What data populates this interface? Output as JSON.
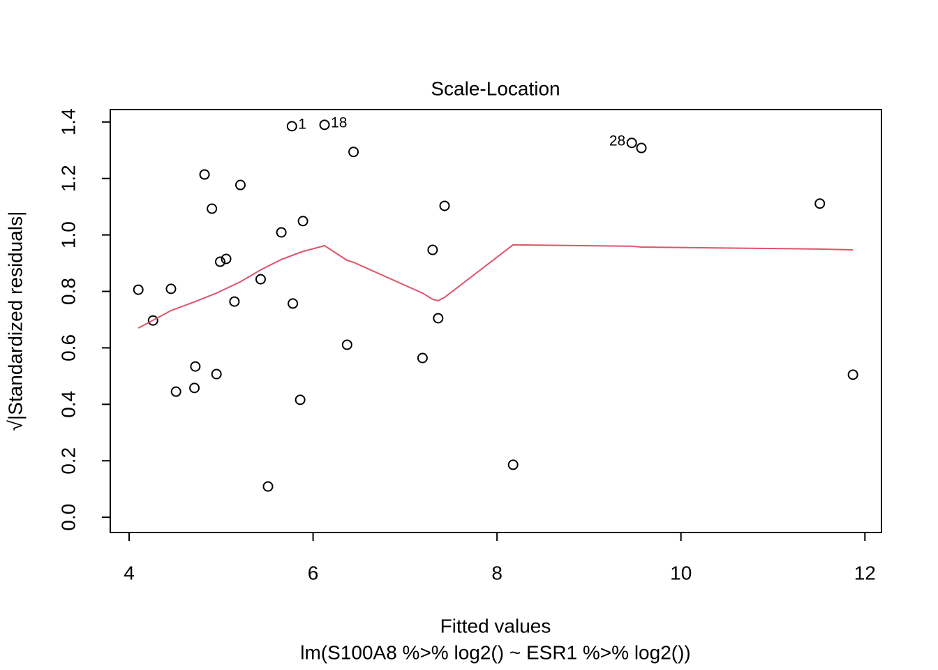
{
  "chart_data": {
    "type": "scatter",
    "title": "Scale-Location",
    "xlabel": "Fitted values",
    "subtitle": "lm(S100A8 %>% log2() ~ ESR1 %>% log2())",
    "ylabel": "√|Standardized residuals|",
    "xlim": [
      3.795,
      12.18
    ],
    "ylim": [
      -0.054,
      1.444
    ],
    "xticks": [
      4,
      6,
      8,
      10,
      12
    ],
    "yticks": [
      {
        "value": 0,
        "label": "0.0"
      },
      {
        "value": 0.2,
        "label": "0.2"
      },
      {
        "value": 0.4,
        "label": "0.4"
      },
      {
        "value": 0.6,
        "label": "0.6"
      },
      {
        "value": 0.8,
        "label": "0.8"
      },
      {
        "value": 1,
        "label": "1.0"
      },
      {
        "value": 1.2,
        "label": "1.2"
      },
      {
        "value": 1.4,
        "label": "1.4"
      }
    ],
    "series": [
      {
        "kind": "points",
        "color": "#000000",
        "x": [
          4.1,
          4.26,
          4.455,
          4.51,
          4.71,
          4.72,
          4.82,
          4.9,
          4.95,
          4.99,
          5.055,
          5.145,
          5.21,
          5.43,
          5.51,
          5.655,
          5.77,
          5.78,
          5.86,
          5.89,
          6.125,
          6.37,
          6.44,
          7.19,
          7.3,
          7.36,
          7.43,
          8.175,
          9.465,
          9.57,
          11.51,
          11.87
        ],
        "values": [
          0.806,
          0.697,
          0.809,
          0.445,
          0.458,
          0.534,
          1.214,
          1.093,
          0.507,
          0.905,
          0.915,
          0.764,
          1.177,
          0.843,
          0.109,
          1.009,
          1.385,
          0.757,
          0.416,
          1.049,
          1.39,
          0.611,
          1.294,
          0.564,
          0.947,
          0.705,
          1.103,
          0.186,
          1.326,
          1.308,
          1.111,
          0.505
        ],
        "labels": [
          null,
          null,
          null,
          null,
          null,
          null,
          null,
          null,
          null,
          null,
          null,
          null,
          null,
          null,
          null,
          null,
          "1",
          null,
          null,
          null,
          "18",
          null,
          null,
          null,
          null,
          null,
          null,
          null,
          "28",
          null,
          null,
          null
        ]
      },
      {
        "kind": "smooth",
        "color": "#DF536B",
        "x": [
          4.1,
          4.455,
          4.72,
          4.95,
          5.21,
          5.44,
          5.655,
          5.875,
          6.125,
          6.37,
          6.44,
          7.19,
          7.3,
          7.36,
          7.43,
          8.175,
          9.465,
          9.57,
          11.51,
          11.87
        ],
        "values": [
          0.67,
          0.732,
          0.764,
          0.794,
          0.834,
          0.878,
          0.913,
          0.94,
          0.962,
          0.91,
          0.903,
          0.794,
          0.772,
          0.767,
          0.779,
          0.965,
          0.96,
          0.957,
          0.95,
          0.947
        ]
      }
    ]
  }
}
